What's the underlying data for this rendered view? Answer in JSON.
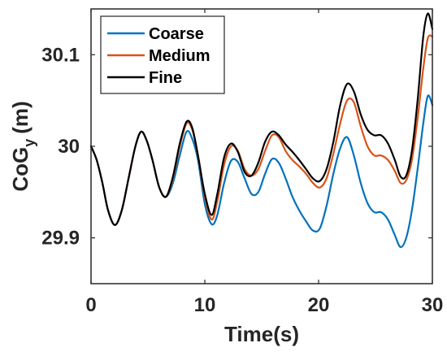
{
  "chart_data": {
    "type": "line",
    "xlabel": "Time(s)",
    "ylabel_main": "CoG",
    "ylabel_sub": "y",
    "ylabel_unit": "(m)",
    "xlim": [
      0,
      30
    ],
    "ylim": [
      29.85,
      30.15
    ],
    "xticks": [
      0,
      10,
      20,
      30
    ],
    "xtick_labels": [
      "0",
      "10",
      "20",
      "30"
    ],
    "yticks": [
      29.9,
      30.0,
      30.1
    ],
    "ytick_labels": [
      "29.9",
      "30",
      "30.1"
    ],
    "grid": false,
    "legend_position": "top-left",
    "series": [
      {
        "name": "Coarse",
        "color": "#0072BD",
        "x": [
          0,
          0.5,
          1,
          1.5,
          2.1,
          2.7,
          3.3,
          3.9,
          4.4,
          4.9,
          5.4,
          6.0,
          6.6,
          7.2,
          7.8,
          8.4,
          8.9,
          9.4,
          10.0,
          10.6,
          11.1,
          11.7,
          12.3,
          12.9,
          13.5,
          14.1,
          14.7,
          15.3,
          15.9,
          16.5,
          17.1,
          17.7,
          18.3,
          18.9,
          19.5,
          20.1,
          20.7,
          21.3,
          21.9,
          22.5,
          23.1,
          23.7,
          24.3,
          24.9,
          25.5,
          26.1,
          26.7,
          27.2,
          27.7,
          28.2,
          28.7,
          29.2,
          29.6,
          30.0
        ],
        "y": [
          30.0,
          29.985,
          29.96,
          29.93,
          29.914,
          29.93,
          29.965,
          30.0,
          30.016,
          30.006,
          29.985,
          29.955,
          29.945,
          29.96,
          29.99,
          30.016,
          30.008,
          29.985,
          29.937,
          29.915,
          29.925,
          29.96,
          29.984,
          29.983,
          29.965,
          29.948,
          29.95,
          29.97,
          29.986,
          29.982,
          29.965,
          29.945,
          29.93,
          29.918,
          29.908,
          29.91,
          29.935,
          29.97,
          29.998,
          30.01,
          29.99,
          29.96,
          29.938,
          29.928,
          29.928,
          29.92,
          29.903,
          29.89,
          29.9,
          29.93,
          29.975,
          30.025,
          30.055,
          30.045
        ]
      },
      {
        "name": "Medium",
        "color": "#D95319",
        "x": [
          0,
          0.5,
          1,
          1.5,
          2.1,
          2.7,
          3.3,
          3.9,
          4.4,
          4.9,
          5.4,
          6.0,
          6.6,
          7.2,
          7.8,
          8.4,
          8.9,
          9.4,
          10.0,
          10.6,
          11.1,
          11.7,
          12.3,
          12.9,
          13.5,
          14.1,
          14.7,
          15.3,
          15.9,
          16.5,
          17.1,
          17.7,
          18.3,
          18.9,
          19.5,
          20.1,
          20.7,
          21.3,
          21.9,
          22.5,
          23.1,
          23.7,
          24.3,
          24.9,
          25.5,
          26.1,
          26.7,
          27.2,
          27.7,
          28.2,
          28.7,
          29.2,
          29.6,
          30.0
        ],
        "y": [
          30.0,
          29.985,
          29.96,
          29.93,
          29.914,
          29.93,
          29.965,
          30.0,
          30.016,
          30.006,
          29.985,
          29.955,
          29.945,
          29.965,
          30.0,
          30.025,
          30.018,
          29.99,
          29.945,
          29.92,
          29.94,
          29.98,
          30.0,
          29.995,
          29.975,
          29.968,
          29.975,
          29.995,
          30.012,
          30.01,
          29.995,
          29.985,
          29.978,
          29.97,
          29.96,
          29.955,
          29.965,
          29.992,
          30.025,
          30.05,
          30.048,
          30.022,
          30.0,
          29.99,
          29.99,
          29.985,
          29.973,
          29.96,
          29.963,
          29.985,
          30.03,
          30.085,
          30.118,
          30.12
        ]
      },
      {
        "name": "Fine",
        "color": "#000000",
        "x": [
          0,
          0.5,
          1,
          1.5,
          2.1,
          2.7,
          3.3,
          3.9,
          4.4,
          4.9,
          5.4,
          6.0,
          6.6,
          7.2,
          7.8,
          8.4,
          8.9,
          9.4,
          10.0,
          10.6,
          11.1,
          11.7,
          12.3,
          12.9,
          13.5,
          14.1,
          14.7,
          15.3,
          15.9,
          16.5,
          17.1,
          17.7,
          18.3,
          18.9,
          19.5,
          20.1,
          20.7,
          21.3,
          21.9,
          22.5,
          23.1,
          23.7,
          24.3,
          24.9,
          25.5,
          26.1,
          26.7,
          27.2,
          27.7,
          28.2,
          28.7,
          29.2,
          29.6,
          30.0
        ],
        "y": [
          30.0,
          29.985,
          29.96,
          29.93,
          29.914,
          29.93,
          29.965,
          30.0,
          30.016,
          30.006,
          29.985,
          29.955,
          29.945,
          29.967,
          30.003,
          30.027,
          30.02,
          29.99,
          29.948,
          29.925,
          29.948,
          29.988,
          30.003,
          29.994,
          29.972,
          29.968,
          29.982,
          30.005,
          30.016,
          30.012,
          30.002,
          29.994,
          29.985,
          29.975,
          29.965,
          29.962,
          29.975,
          30.005,
          30.045,
          30.068,
          30.06,
          30.035,
          30.018,
          30.012,
          30.012,
          30.003,
          29.985,
          29.967,
          29.968,
          29.995,
          30.05,
          30.12,
          30.145,
          30.128
        ]
      }
    ]
  }
}
